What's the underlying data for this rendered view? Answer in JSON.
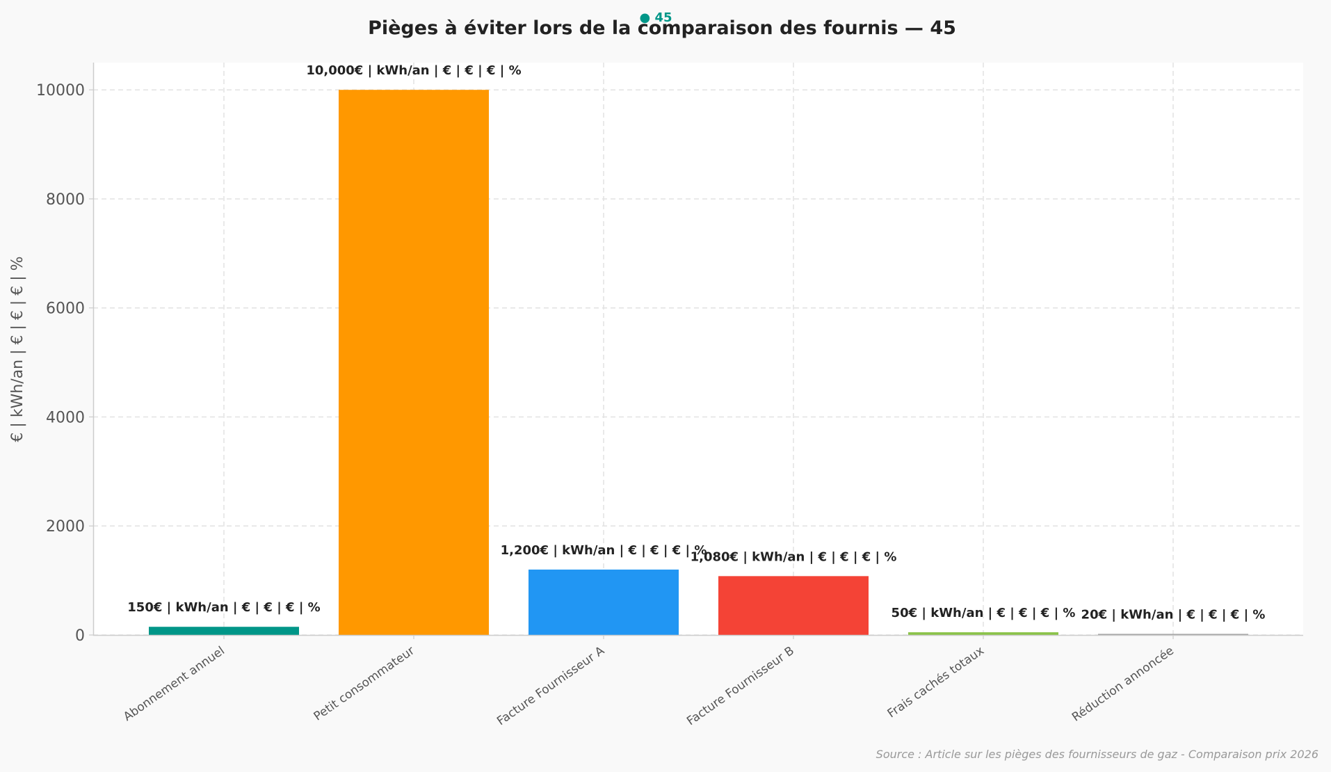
{
  "chart_data": {
    "type": "bar",
    "title": "Pièges à éviter lors de la comparaison des fournis — 45",
    "badge": "● 45",
    "ylabel": "€ | kWh/an | € | € | € | %",
    "xlabel": "",
    "ylim": [
      0,
      10500
    ],
    "yticks": [
      "0",
      "2000",
      "4000",
      "6000",
      "8000",
      "10000"
    ],
    "grid": true,
    "categories": [
      "Abonnement annuel",
      "Petit consommateur",
      "Facture Fournisseur A",
      "Facture Fournisseur B",
      "Frais cachés totaux",
      "Réduction annoncée"
    ],
    "values": [
      150,
      10000,
      1200,
      1080,
      50,
      20
    ],
    "data_labels": [
      "150€ | kWh/an | € | € | € | %",
      "10,000€ | kWh/an | € | € | € | %",
      "1,200€ | kWh/an | € | € | € | %",
      "1,080€ | kWh/an | € | € | € | %",
      "50€ | kWh/an | € | € | € | %",
      "20€ | kWh/an | € | € | € | %"
    ],
    "colors": [
      "#009688",
      "#FF9800",
      "#2196F3",
      "#F44336",
      "#8BC34A",
      "#9E9E9E"
    ],
    "source": "Source : Article sur les pièges des fournisseurs de gaz - Comparaison prix 2026"
  }
}
